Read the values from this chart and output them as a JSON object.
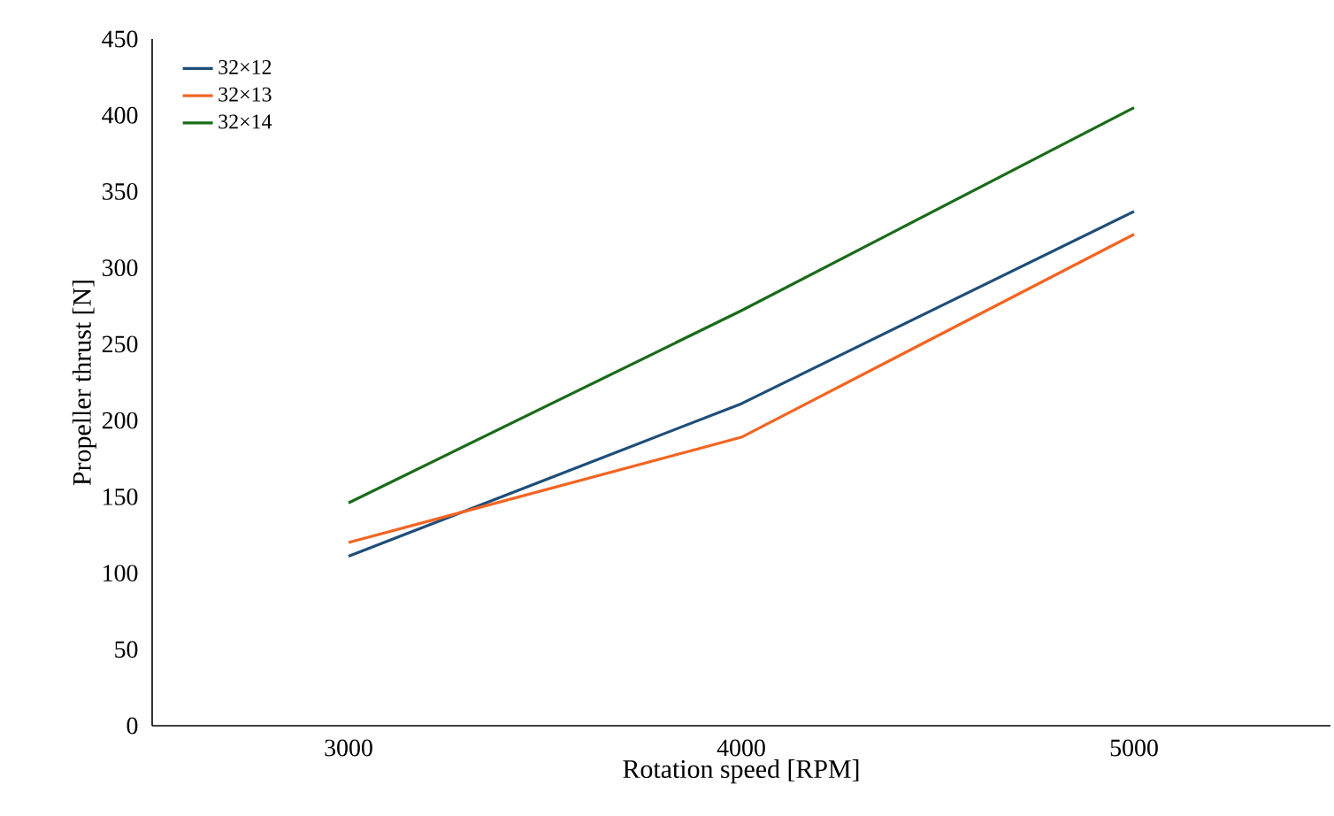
{
  "chart_data": {
    "type": "line",
    "xlabel": "Rotation speed [RPM]",
    "ylabel": "Propeller thrust [N]",
    "categories": [
      "3000",
      "4000",
      "5000"
    ],
    "series": [
      {
        "name": "32×12",
        "color": "#1f4e79",
        "values": [
          111,
          211,
          337
        ]
      },
      {
        "name": "32×13",
        "color": "#f26522",
        "values": [
          120,
          189,
          322
        ]
      },
      {
        "name": "32×14",
        "color": "#1a6b1a",
        "values": [
          146,
          272,
          405
        ]
      }
    ],
    "ylim": [
      0,
      450
    ],
    "yticks": [
      0,
      50,
      100,
      150,
      200,
      250,
      300,
      350,
      400,
      450
    ],
    "legend": "top left",
    "grid": false
  }
}
